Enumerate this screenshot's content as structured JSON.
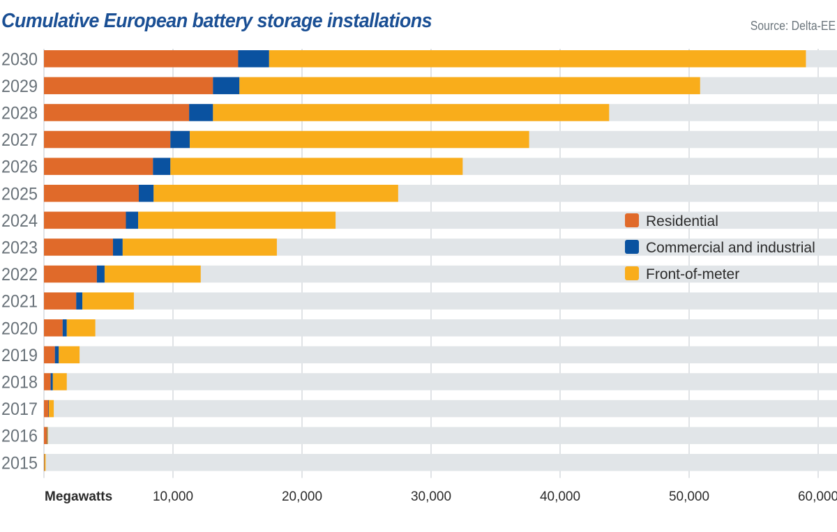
{
  "header": {
    "title": "Cumulative European battery storage installations",
    "source": "Source: Delta-EE"
  },
  "colors": {
    "residential": "#e06a2a",
    "commercial": "#0a52a0",
    "front_of_meter": "#f9ad1b",
    "track": "#e1e5e8",
    "gridline": "#d6dadd",
    "title": "#1a4f94"
  },
  "chart_data": {
    "type": "bar",
    "orientation": "horizontal",
    "stacked": true,
    "title": "Cumulative European battery storage installations",
    "source": "Source: Delta-EE",
    "xlabel": "Megawatts",
    "ylabel": "",
    "xlim": [
      0,
      60000
    ],
    "xticks": [
      10000,
      20000,
      30000,
      40000,
      50000,
      60000
    ],
    "xtick_labels": [
      "10,000",
      "20,000",
      "30,000",
      "40,000",
      "50,000",
      "60,000"
    ],
    "grid": true,
    "legend_position": "right-middle",
    "categories": [
      "2030",
      "2029",
      "2028",
      "2027",
      "2026",
      "2025",
      "2024",
      "2023",
      "2022",
      "2021",
      "2020",
      "2019",
      "2018",
      "2017",
      "2016",
      "2015"
    ],
    "series": [
      {
        "name": "Residential",
        "color": "#e06a2a",
        "values": [
          15050,
          13100,
          11250,
          9800,
          8450,
          7350,
          6350,
          5350,
          4100,
          2500,
          1450,
          850,
          520,
          350,
          220,
          30
        ]
      },
      {
        "name": "Commercial and industrial",
        "color": "#0a52a0",
        "values": [
          2400,
          2050,
          1850,
          1500,
          1350,
          1150,
          950,
          750,
          600,
          480,
          320,
          300,
          170,
          30,
          30,
          10
        ]
      },
      {
        "name": "Front-of-meter",
        "color": "#f9ad1b",
        "values": [
          41600,
          35700,
          30700,
          26300,
          22650,
          18950,
          15300,
          11950,
          7450,
          3990,
          2210,
          1610,
          1080,
          380,
          60,
          90
        ]
      }
    ],
    "totals": [
      59050,
      50850,
      43800,
      37600,
      32450,
      27450,
      22600,
      18050,
      12150,
      6970,
      3980,
      2760,
      1770,
      760,
      310,
      130
    ]
  }
}
